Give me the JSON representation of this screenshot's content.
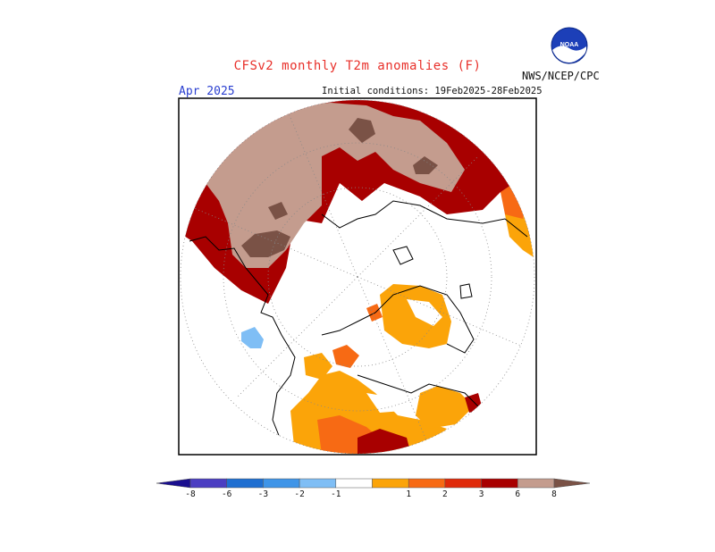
{
  "header": {
    "title": "CFSv2 monthly T2m anomalies (F)",
    "agency": "NWS/NCEP/CPC",
    "logo_text": "NOAA",
    "valid_month": "Apr 2025",
    "initial_conditions": "Initial conditions: 19Feb2025-28Feb2025"
  },
  "colorbar": {
    "labels": [
      "-8",
      "-6",
      "-3",
      "-2",
      "-1",
      "1",
      "2",
      "3",
      "6",
      "8"
    ],
    "colors": [
      "#1a0f8f",
      "#4b3ec2",
      "#1f6fd1",
      "#3f95e8",
      "#7fbef5",
      "#ffffff",
      "#fba409",
      "#f76a14",
      "#e02a0a",
      "#a80000",
      "#c49c8e",
      "#7a5246"
    ]
  },
  "map_legend_colors": {
    "neg1": "#7fbef5",
    "pos1": "#fba409",
    "pos2": "#f76a14",
    "pos3": "#a80000",
    "pos6": "#c49c8e",
    "pos8": "#7a5246"
  }
}
